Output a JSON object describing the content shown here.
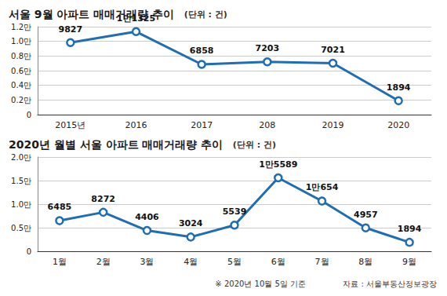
{
  "chart_data": [
    {
      "type": "line",
      "title": "서울 9월 아파트 매매거래량 추이",
      "subtitle": "(단위 : 건)",
      "categories": [
        "2015년",
        "2016",
        "2017",
        "208",
        "2019",
        "2020"
      ],
      "values": [
        9827,
        11325,
        6858,
        7203,
        7021,
        1894
      ],
      "value_labels": [
        "9827",
        "1만1325",
        "6858",
        "7203",
        "7021",
        "1894"
      ],
      "color": "#1f6db4",
      "marker": "circle",
      "data_labels": true,
      "grid": true,
      "ylim": [
        0,
        12000
      ],
      "yticks": [
        0,
        {
          "value": 2000,
          "label": "0.2만"
        },
        {
          "value": 4000,
          "label": "0.4만"
        },
        {
          "value": 6000,
          "label": "0.6만"
        },
        {
          "value": 8000,
          "label": "0.8만"
        },
        {
          "value": 10000,
          "label": "1.0만"
        },
        {
          "value": 12000,
          "label": "1.2만"
        }
      ]
    },
    {
      "type": "line",
      "title": "2020년 월별 서울 아파트 매매거래량 추이",
      "subtitle": "(단위 : 건)",
      "categories": [
        "1월",
        "2월",
        "3월",
        "4월",
        "5월",
        "6월",
        "7월",
        "8월",
        "9월"
      ],
      "values": [
        6485,
        8272,
        4406,
        3024,
        5539,
        15589,
        10654,
        4957,
        1894
      ],
      "value_labels": [
        "6485",
        "8272",
        "4406",
        "3024",
        "5539",
        "1만5589",
        "1만654",
        "4957",
        "1894"
      ],
      "color": "#1f6db4",
      "marker": "circle",
      "data_labels": true,
      "grid": true,
      "ylim": [
        0,
        20000
      ],
      "yticks": [
        0,
        {
          "value": 5000,
          "label": "0.5만"
        },
        {
          "value": 10000,
          "label": "1.0만"
        },
        {
          "value": 15000,
          "label": "1.5만"
        },
        {
          "value": 20000,
          "label": "2.0만"
        }
      ],
      "annotations": [
        "※ 2020년 10월 5일 기준",
        "자료 : 서울부동산정보광장"
      ]
    }
  ]
}
